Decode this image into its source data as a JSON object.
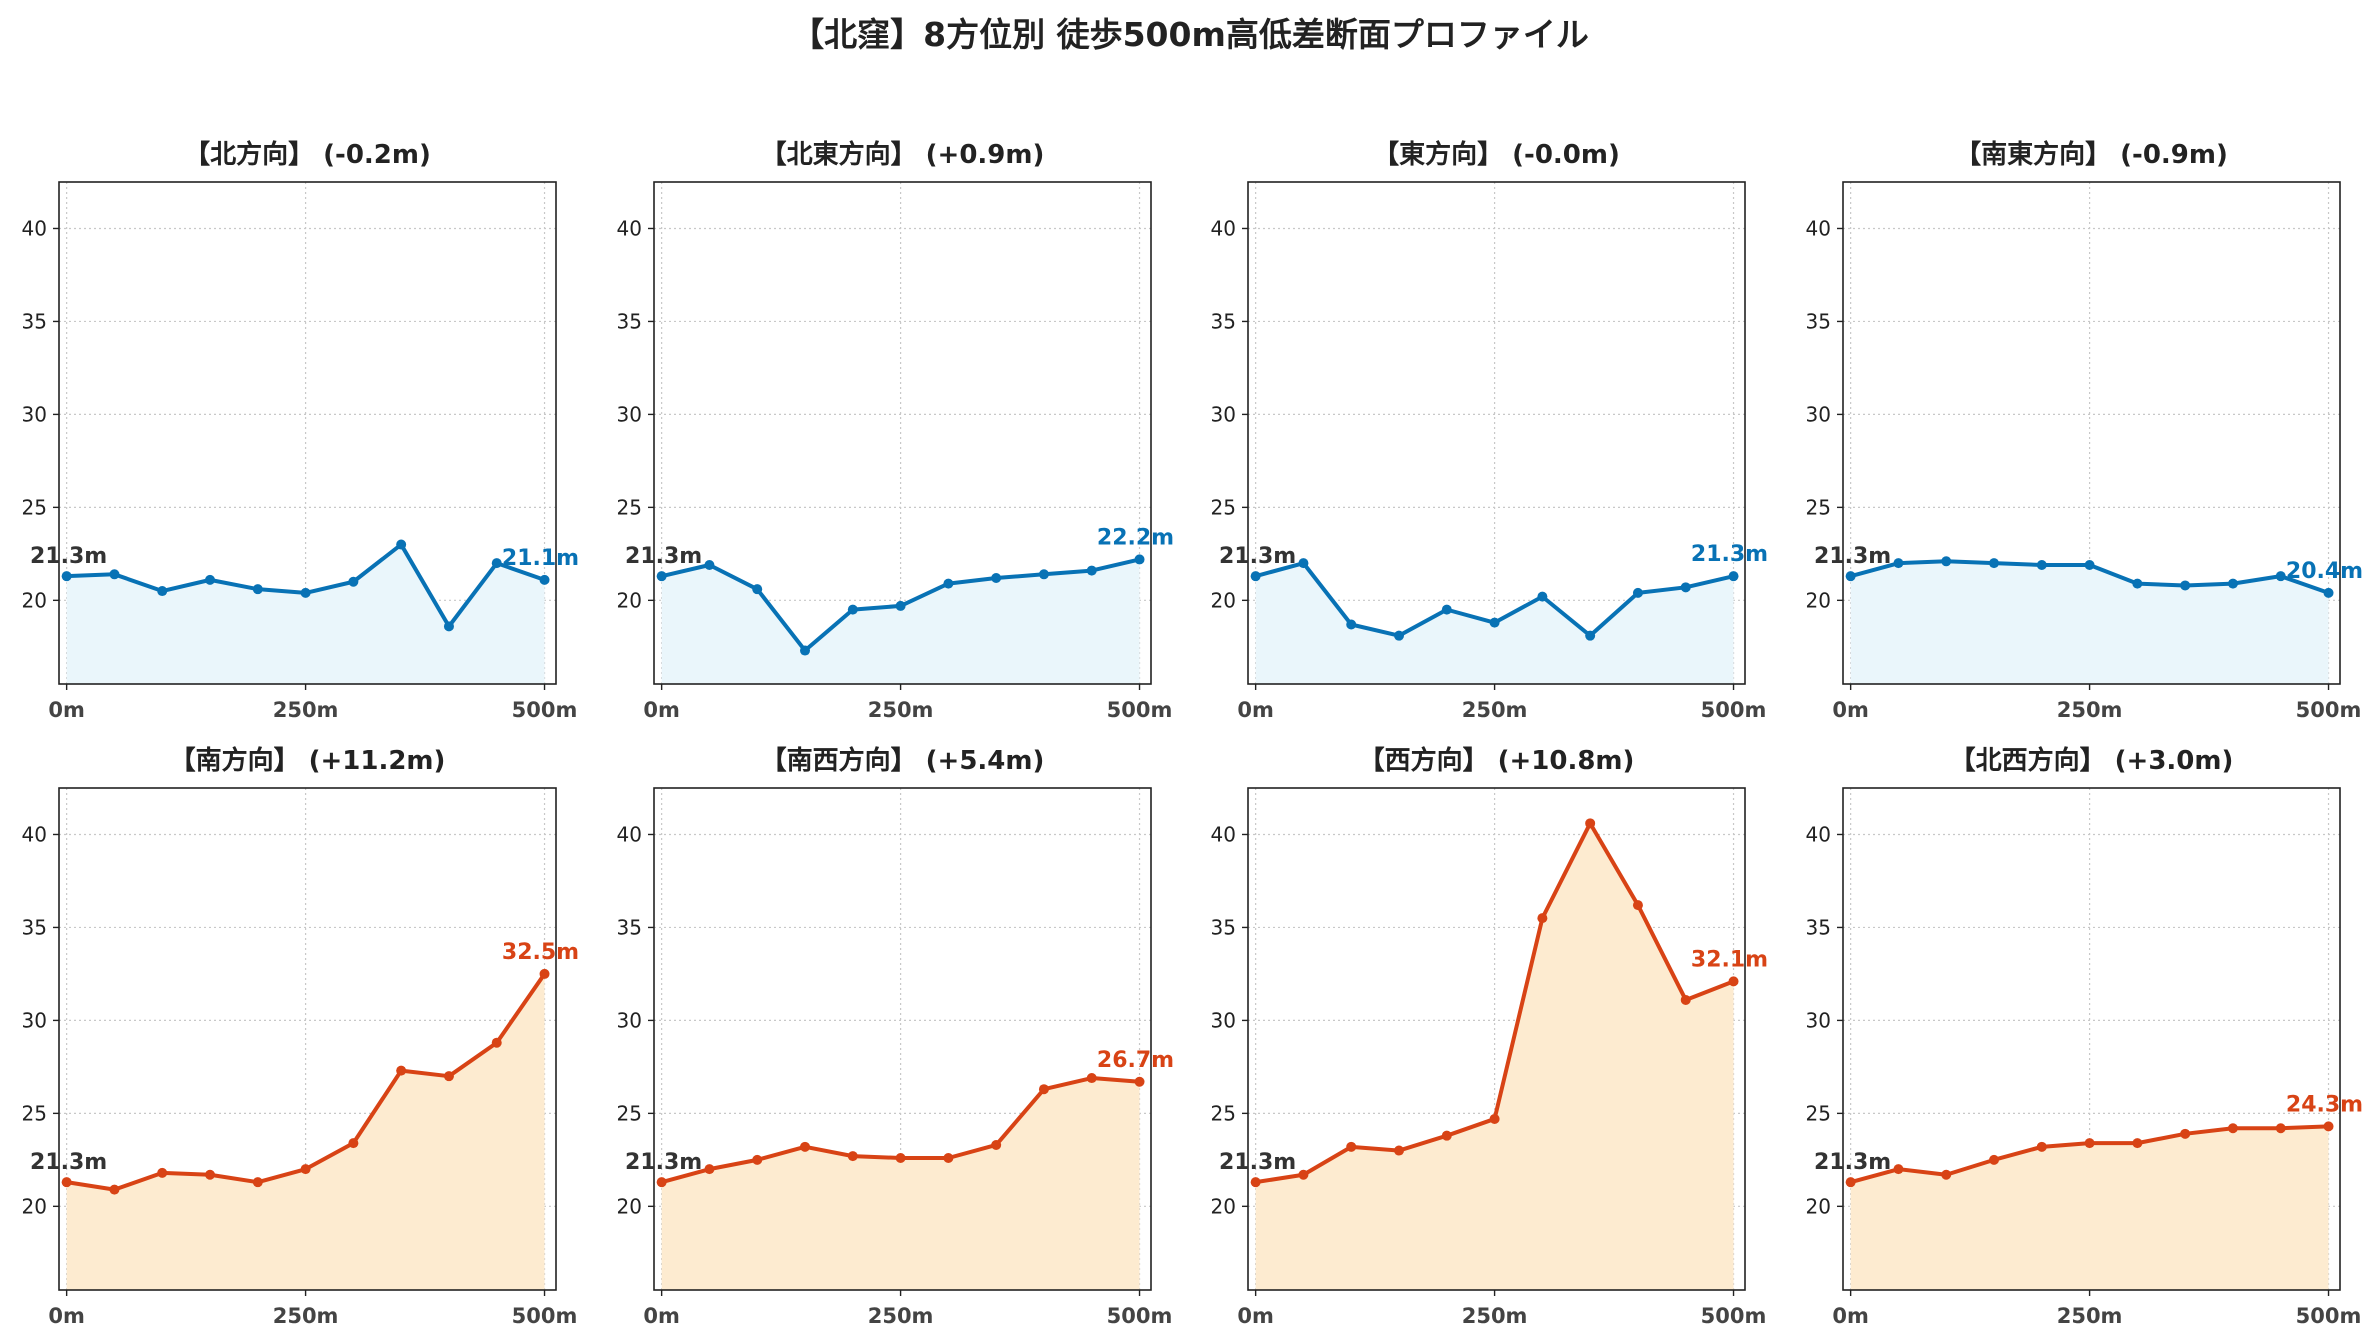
{
  "title": "【北窪】8方位別 徒歩500m高低差断面プロファイル",
  "colors": {
    "flat_line": "#0872b5",
    "flat_fill": "#eaf6fb",
    "up_line": "#d84315",
    "up_fill": "#fdebd0",
    "start_label": "#333333"
  },
  "chart_data": [
    {
      "type": "line",
      "title": "【北方向】 (-0.2m)",
      "trend": "flat",
      "x": [
        0,
        50,
        100,
        150,
        200,
        250,
        300,
        350,
        400,
        450,
        500
      ],
      "y": [
        21.3,
        21.4,
        20.5,
        21.1,
        20.6,
        20.4,
        21.0,
        23.0,
        18.6,
        22.0,
        21.1
      ],
      "start_label": "21.3m",
      "end_label": "21.1m",
      "xticks": [
        "0m",
        "250m",
        "500m"
      ],
      "yticks": [
        20,
        25,
        30,
        35,
        40
      ],
      "ylim": [
        15.5,
        42.5
      ],
      "grid": true
    },
    {
      "type": "line",
      "title": "【北東方向】 (+0.9m)",
      "trend": "flat",
      "x": [
        0,
        50,
        100,
        150,
        200,
        250,
        300,
        350,
        400,
        450,
        500
      ],
      "y": [
        21.3,
        21.9,
        20.6,
        17.3,
        19.5,
        19.7,
        20.9,
        21.2,
        21.4,
        21.6,
        22.2
      ],
      "start_label": "21.3m",
      "end_label": "22.2m",
      "xticks": [
        "0m",
        "250m",
        "500m"
      ],
      "yticks": [
        20,
        25,
        30,
        35,
        40
      ],
      "ylim": [
        15.5,
        42.5
      ],
      "grid": true
    },
    {
      "type": "line",
      "title": "【東方向】 (-0.0m)",
      "trend": "flat",
      "x": [
        0,
        50,
        100,
        150,
        200,
        250,
        300,
        350,
        400,
        450,
        500
      ],
      "y": [
        21.3,
        22.0,
        18.7,
        18.1,
        19.5,
        18.8,
        20.2,
        18.1,
        20.4,
        20.7,
        21.3
      ],
      "start_label": "21.3m",
      "end_label": "21.3m",
      "xticks": [
        "0m",
        "250m",
        "500m"
      ],
      "yticks": [
        20,
        25,
        30,
        35,
        40
      ],
      "ylim": [
        15.5,
        42.5
      ],
      "grid": true
    },
    {
      "type": "line",
      "title": "【南東方向】 (-0.9m)",
      "trend": "flat",
      "x": [
        0,
        50,
        100,
        150,
        200,
        250,
        300,
        350,
        400,
        450,
        500
      ],
      "y": [
        21.3,
        22.0,
        22.1,
        22.0,
        21.9,
        21.9,
        20.9,
        20.8,
        20.9,
        21.3,
        20.4
      ],
      "start_label": "21.3m",
      "end_label": "20.4m",
      "xticks": [
        "0m",
        "250m",
        "500m"
      ],
      "yticks": [
        20,
        25,
        30,
        35,
        40
      ],
      "ylim": [
        15.5,
        42.5
      ],
      "grid": true
    },
    {
      "type": "line",
      "title": "【南方向】 (+11.2m)",
      "trend": "up",
      "x": [
        0,
        50,
        100,
        150,
        200,
        250,
        300,
        350,
        400,
        450,
        500
      ],
      "y": [
        21.3,
        20.9,
        21.8,
        21.7,
        21.3,
        22.0,
        23.4,
        27.3,
        27.0,
        28.8,
        32.5
      ],
      "start_label": "21.3m",
      "end_label": "32.5m",
      "xticks": [
        "0m",
        "250m",
        "500m"
      ],
      "yticks": [
        20,
        25,
        30,
        35,
        40
      ],
      "ylim": [
        15.5,
        42.5
      ],
      "grid": true
    },
    {
      "type": "line",
      "title": "【南西方向】 (+5.4m)",
      "trend": "up",
      "x": [
        0,
        50,
        100,
        150,
        200,
        250,
        300,
        350,
        400,
        450,
        500
      ],
      "y": [
        21.3,
        22.0,
        22.5,
        23.2,
        22.7,
        22.6,
        22.6,
        23.3,
        26.3,
        26.9,
        26.7
      ],
      "start_label": "21.3m",
      "end_label": "26.7m",
      "xticks": [
        "0m",
        "250m",
        "500m"
      ],
      "yticks": [
        20,
        25,
        30,
        35,
        40
      ],
      "ylim": [
        15.5,
        42.5
      ],
      "grid": true
    },
    {
      "type": "line",
      "title": "【西方向】 (+10.8m)",
      "trend": "up",
      "x": [
        0,
        50,
        100,
        150,
        200,
        250,
        300,
        350,
        400,
        450,
        500
      ],
      "y": [
        21.3,
        21.7,
        23.2,
        23.0,
        23.8,
        24.7,
        35.5,
        40.6,
        36.2,
        31.1,
        32.1
      ],
      "start_label": "21.3m",
      "end_label": "32.1m",
      "xticks": [
        "0m",
        "250m",
        "500m"
      ],
      "yticks": [
        20,
        25,
        30,
        35,
        40
      ],
      "ylim": [
        15.5,
        42.5
      ],
      "grid": true
    },
    {
      "type": "line",
      "title": "【北西方向】 (+3.0m)",
      "trend": "up",
      "x": [
        0,
        50,
        100,
        150,
        200,
        250,
        300,
        350,
        400,
        450,
        500
      ],
      "y": [
        21.3,
        22.0,
        21.7,
        22.5,
        23.2,
        23.4,
        23.4,
        23.9,
        24.2,
        24.2,
        24.3
      ],
      "start_label": "21.3m",
      "end_label": "24.3m",
      "xticks": [
        "0m",
        "250m",
        "500m"
      ],
      "yticks": [
        20,
        25,
        30,
        35,
        40
      ],
      "ylim": [
        15.5,
        42.5
      ],
      "grid": true
    }
  ]
}
